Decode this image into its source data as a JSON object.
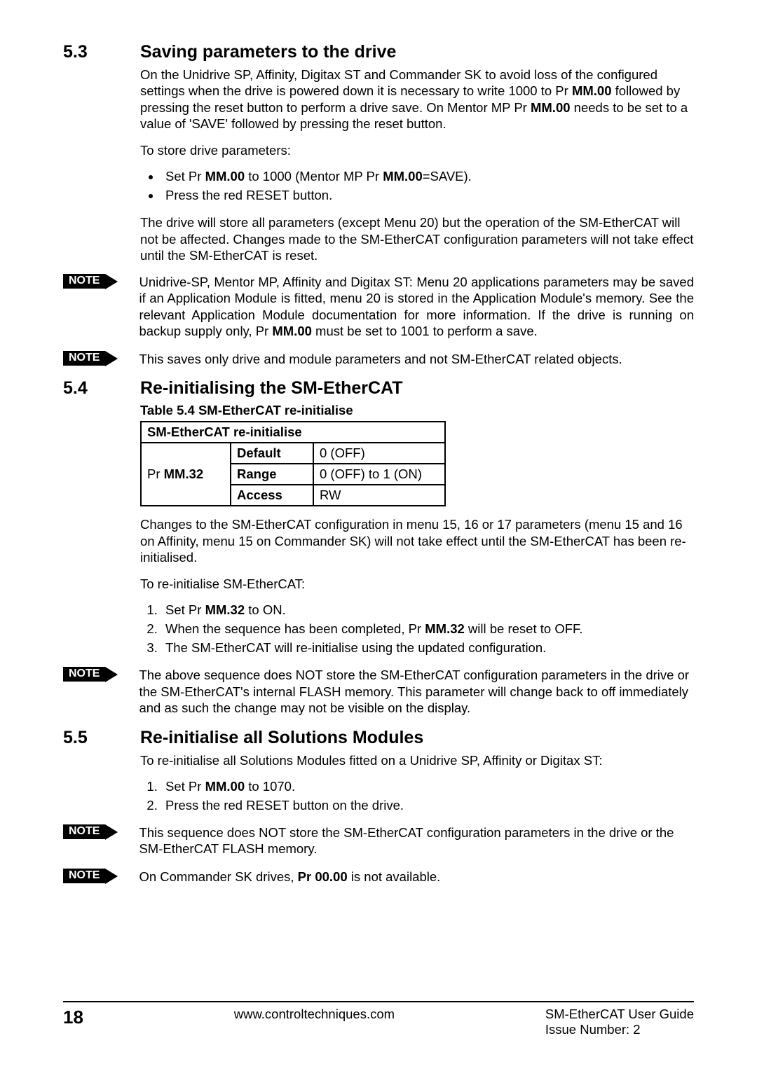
{
  "sections": {
    "s53": {
      "num": "5.3",
      "title": "Saving parameters to the drive",
      "intro": "On the Unidrive SP, Affinity, Digitax ST and Commander SK to avoid loss of the configured settings when the drive is powered down it is necessary to write 1000 to Pr <b>MM.00</b> followed by pressing the reset button to perform a drive save. On Mentor MP Pr <b>MM.00</b> needs to be set to a value of 'SAVE' followed by pressing the reset button.",
      "store_intro": "To store drive parameters:",
      "bullets": [
        "Set Pr <b>MM.00</b> to 1000 (Mentor MP Pr <b>MM.00</b>=SAVE).",
        "Press the red RESET button."
      ],
      "after": "The drive will store all parameters (except Menu 20) but the operation of the SM-EtherCAT will not be affected. Changes made to the SM-EtherCAT configuration parameters will not take effect until the SM-EtherCAT is reset.",
      "note1": "Unidrive-SP, Mentor MP, Affinity and Digitax ST: Menu 20 applications parameters may be saved if an Application Module is fitted, menu 20 is stored in the Application Module's memory. See the relevant Application Module documentation for more information. If the drive is running on backup supply only, Pr <b>MM.00</b> must be set to 1001 to perform a save.",
      "note2": "This saves only drive and module parameters and not SM-EtherCAT related objects."
    },
    "s54": {
      "num": "5.4",
      "title": "Re-initialising the SM-EtherCAT",
      "table_caption": "Table 5.4  SM-EtherCAT re-initialise",
      "table": {
        "header": "SM-EtherCAT re-initialise",
        "param": "Pr <b>MM.32</b>",
        "rows": [
          {
            "label": "Default",
            "value": "0 (OFF)"
          },
          {
            "label": "Range",
            "value": "0 (OFF) to 1 (ON)"
          },
          {
            "label": "Access",
            "value": "RW"
          }
        ],
        "col_widths": [
          "110px",
          "100px",
          "170px"
        ],
        "border_color": "#000000"
      },
      "changes": "Changes to the SM-EtherCAT configuration in menu 15, 16 or 17 parameters (menu 15 and 16 on Affinity, menu 15 on Commander SK) will not take effect until the SM-EtherCAT has been re-initialised.",
      "reinit_intro": "To re-initialise SM-EtherCAT:",
      "steps": [
        "Set Pr <b>MM.32</b> to ON.",
        "When the sequence has been completed, Pr <b>MM.32</b>  will be reset to OFF.",
        "The SM-EtherCAT will re-initialise using the updated configuration."
      ],
      "note1": "The above sequence does NOT store the SM-EtherCAT configuration parameters in the drive or the SM-EtherCAT's internal FLASH memory. This parameter will change back to off immediately and as such the change may not be visible on the display."
    },
    "s55": {
      "num": "5.5",
      "title": "Re-initialise all Solutions Modules",
      "intro": "To re-initialise all Solutions Modules fitted on a Unidrive SP, Affinity or Digitax ST:",
      "steps": [
        "Set Pr <b>MM.00</b> to 1070.",
        "Press the red RESET button on the drive."
      ],
      "note1": "This sequence does NOT store the SM-EtherCAT configuration parameters in the drive or the SM-EtherCAT FLASH memory.",
      "note2": "On Commander SK drives, <b>Pr 00.00</b> is not available."
    }
  },
  "note_label": "NOTE",
  "footer": {
    "page": "18",
    "url": "www.controltechniques.com",
    "guide": "SM-EtherCAT User Guide",
    "issue": "Issue Number:  2"
  },
  "typography": {
    "heading_fontsize": 25,
    "body_fontsize": 18.5,
    "note_badge_bg": "#000000",
    "note_badge_fg": "#ffffff",
    "background": "#ffffff",
    "text_color": "#000000"
  }
}
